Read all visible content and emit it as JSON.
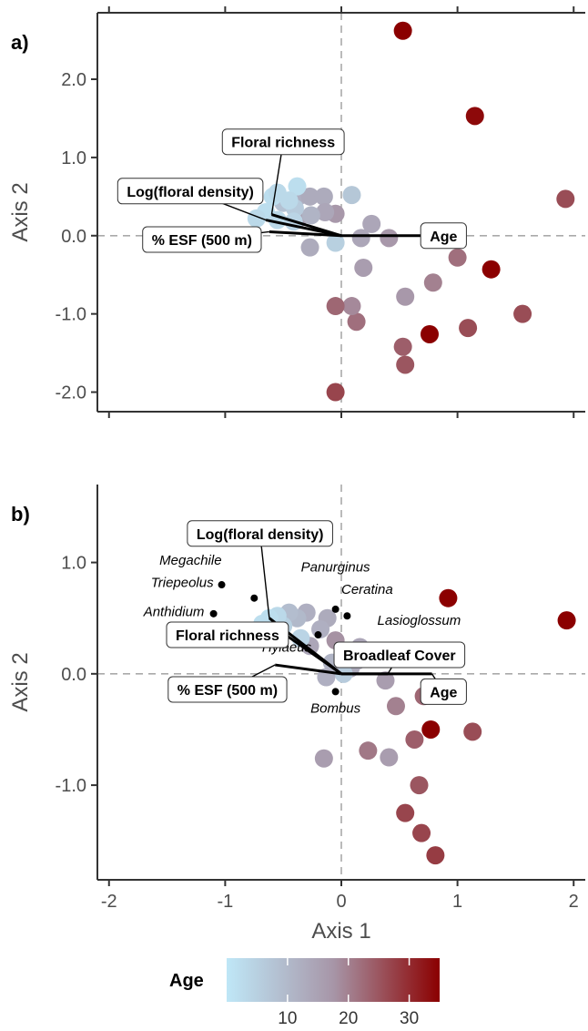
{
  "colors": {
    "low": "#bfe7f7",
    "mid": "#a796a8",
    "high": "#8b0000",
    "arrow": "#000000",
    "zero_line": "#aaaaaa"
  },
  "chart_data": [
    {
      "type": "scatter",
      "panel_label": "a)",
      "xlabel": "",
      "ylabel": "Axis 2",
      "xlim": [
        -2.1,
        2.1
      ],
      "ylim": [
        -2.25,
        2.85
      ],
      "xticks": [
        -2,
        -1,
        0,
        1,
        2
      ],
      "yticks": [
        -2.0,
        -1.0,
        0.0,
        1.0,
        2.0
      ],
      "ytick_labels": [
        "-2.0",
        "-1.0",
        "0.0",
        "1.0",
        "2.0"
      ],
      "points": [
        {
          "x": 0.53,
          "y": 2.62,
          "age": 35
        },
        {
          "x": 1.15,
          "y": 1.53,
          "age": 34
        },
        {
          "x": 1.93,
          "y": 0.47,
          "age": 26
        },
        {
          "x": 1.29,
          "y": -0.43,
          "age": 35
        },
        {
          "x": 1.0,
          "y": -0.28,
          "age": 22
        },
        {
          "x": 0.79,
          "y": -0.6,
          "age": 20
        },
        {
          "x": 0.76,
          "y": -1.26,
          "age": 35
        },
        {
          "x": 1.09,
          "y": -1.18,
          "age": 26
        },
        {
          "x": 1.56,
          "y": -1.0,
          "age": 26
        },
        {
          "x": 0.53,
          "y": -1.42,
          "age": 24
        },
        {
          "x": 0.55,
          "y": -1.65,
          "age": 25
        },
        {
          "x": 0.55,
          "y": -0.78,
          "age": 17
        },
        {
          "x": 0.41,
          "y": -0.03,
          "age": 17
        },
        {
          "x": 0.19,
          "y": -0.41,
          "age": 16
        },
        {
          "x": 0.13,
          "y": -1.1,
          "age": 22
        },
        {
          "x": 0.09,
          "y": -0.9,
          "age": 19
        },
        {
          "x": -0.05,
          "y": -0.9,
          "age": 23
        },
        {
          "x": -0.05,
          "y": -2.0,
          "age": 27
        },
        {
          "x": 0.26,
          "y": 0.15,
          "age": 14
        },
        {
          "x": 0.09,
          "y": 0.52,
          "age": 7
        },
        {
          "x": -0.05,
          "y": 0.28,
          "age": 17
        },
        {
          "x": -0.05,
          "y": -0.09,
          "age": 5
        },
        {
          "x": 0.17,
          "y": -0.03,
          "age": 14
        },
        {
          "x": -0.37,
          "y": 0.5,
          "age": 12
        },
        {
          "x": -0.27,
          "y": 0.5,
          "age": 13
        },
        {
          "x": -0.15,
          "y": 0.5,
          "age": 13
        },
        {
          "x": -0.14,
          "y": 0.3,
          "age": 14
        },
        {
          "x": -0.37,
          "y": 0.22,
          "age": 15
        },
        {
          "x": -0.26,
          "y": 0.26,
          "age": 11
        },
        {
          "x": -0.5,
          "y": 0.42,
          "age": 8
        },
        {
          "x": -0.4,
          "y": 0.35,
          "age": 6
        },
        {
          "x": -0.59,
          "y": 0.5,
          "age": 2
        },
        {
          "x": -0.38,
          "y": 0.63,
          "age": 2
        },
        {
          "x": -0.65,
          "y": 0.3,
          "age": 2
        },
        {
          "x": -0.55,
          "y": 0.2,
          "age": 3
        },
        {
          "x": -0.45,
          "y": 0.45,
          "age": 3
        },
        {
          "x": -0.73,
          "y": 0.22,
          "age": 3
        },
        {
          "x": -0.41,
          "y": 0.18,
          "age": 4
        },
        {
          "x": -0.27,
          "y": -0.15,
          "age": 13
        },
        {
          "x": -0.55,
          "y": 0.55,
          "age": 3
        }
      ],
      "vectors": [
        {
          "label": "Age",
          "x": 0.78,
          "y": 0.0,
          "bx": 0.88,
          "by": 0.0
        },
        {
          "label": "Floral richness",
          "x": -0.6,
          "y": 0.27,
          "bx": -0.5,
          "by": 1.2
        },
        {
          "label": "Log(floral density)",
          "x": -0.65,
          "y": 0.2,
          "bx": -1.3,
          "by": 0.57
        },
        {
          "label": "% ESF (500 m)",
          "x": -0.62,
          "y": 0.05,
          "bx": -1.2,
          "by": -0.05
        }
      ],
      "species": []
    },
    {
      "type": "scatter",
      "panel_label": "b)",
      "xlabel": "Axis 1",
      "ylabel": "Axis 2",
      "xlim": [
        -2.1,
        2.1
      ],
      "ylim": [
        -1.85,
        1.7
      ],
      "xticks": [
        -2,
        -1,
        0,
        1,
        2
      ],
      "xtick_labels": [
        "-2",
        "-1",
        "0",
        "1",
        "2"
      ],
      "yticks": [
        -1.0,
        0.0,
        1.0
      ],
      "ytick_labels": [
        "-1.0",
        "0.0",
        "1.0"
      ],
      "points": [
        {
          "x": 0.92,
          "y": 0.68,
          "age": 35
        },
        {
          "x": 1.94,
          "y": 0.48,
          "age": 35
        },
        {
          "x": 0.77,
          "y": -0.5,
          "age": 35
        },
        {
          "x": 1.13,
          "y": -0.52,
          "age": 26
        },
        {
          "x": 0.71,
          "y": -0.2,
          "age": 23
        },
        {
          "x": 0.63,
          "y": -0.59,
          "age": 24
        },
        {
          "x": 0.67,
          "y": -1.0,
          "age": 25
        },
        {
          "x": 0.55,
          "y": -1.25,
          "age": 27
        },
        {
          "x": 0.69,
          "y": -1.43,
          "age": 27
        },
        {
          "x": 0.81,
          "y": -1.63,
          "age": 28
        },
        {
          "x": 0.47,
          "y": -0.29,
          "age": 20
        },
        {
          "x": 0.41,
          "y": -0.75,
          "age": 16
        },
        {
          "x": 0.23,
          "y": -0.69,
          "age": 21
        },
        {
          "x": -0.15,
          "y": -0.76,
          "age": 16
        },
        {
          "x": 0.38,
          "y": -0.06,
          "age": 16
        },
        {
          "x": 0.31,
          "y": 0.2,
          "age": 17
        },
        {
          "x": 0.16,
          "y": 0.24,
          "age": 14
        },
        {
          "x": 0.14,
          "y": 0.12,
          "age": 14
        },
        {
          "x": 0.08,
          "y": 0.05,
          "age": 13
        },
        {
          "x": 0.02,
          "y": 0.0,
          "age": 6
        },
        {
          "x": -0.05,
          "y": 0.3,
          "age": 18
        },
        {
          "x": -0.12,
          "y": 0.5,
          "age": 13
        },
        {
          "x": -0.27,
          "y": 0.25,
          "age": 14
        },
        {
          "x": -0.3,
          "y": 0.55,
          "age": 12
        },
        {
          "x": -0.38,
          "y": 0.5,
          "age": 10
        },
        {
          "x": -0.45,
          "y": 0.55,
          "age": 9
        },
        {
          "x": -0.5,
          "y": 0.43,
          "age": 5
        },
        {
          "x": -0.55,
          "y": 0.52,
          "age": 3
        },
        {
          "x": -0.62,
          "y": 0.5,
          "age": 2
        },
        {
          "x": -0.68,
          "y": 0.45,
          "age": 2
        },
        {
          "x": -0.6,
          "y": 0.33,
          "age": 3
        },
        {
          "x": -0.35,
          "y": 0.32,
          "age": 4
        },
        {
          "x": -0.18,
          "y": 0.4,
          "age": 12
        },
        {
          "x": -0.08,
          "y": 0.1,
          "age": 11
        },
        {
          "x": -0.13,
          "y": -0.03,
          "age": 12
        },
        {
          "x": -0.73,
          "y": 0.38,
          "age": 3
        }
      ],
      "vectors": [
        {
          "label": "Age",
          "x": 0.78,
          "y": 0.0,
          "bx": 0.88,
          "by": -0.16
        },
        {
          "label": "Broadleaf Cover",
          "x": 0.4,
          "y": 0.0,
          "bx": 0.5,
          "by": 0.17
        },
        {
          "label": "Log(floral density)",
          "x": -0.62,
          "y": 0.5,
          "bx": -0.7,
          "by": 1.26
        },
        {
          "label": "Floral richness",
          "x": -0.48,
          "y": 0.35,
          "bx": -0.98,
          "by": 0.35
        },
        {
          "label": "% ESF (500 m)",
          "x": -0.57,
          "y": 0.08,
          "bx": -0.98,
          "by": -0.14
        }
      ],
      "species": [
        {
          "name": "Megachile",
          "x": -0.75,
          "y": 0.68,
          "lx": -1.03,
          "ly": 0.98,
          "anchor": "end"
        },
        {
          "name": "Triepeolus",
          "x": -1.03,
          "y": 0.8,
          "lx": -1.1,
          "ly": 0.78,
          "anchor": "end"
        },
        {
          "name": "Anthidium",
          "x": -1.1,
          "y": 0.54,
          "lx": -1.18,
          "ly": 0.52,
          "anchor": "end"
        },
        {
          "name": "Panurginus",
          "x": -0.05,
          "y": 0.58,
          "lx": -0.05,
          "ly": 0.92,
          "anchor": "middle"
        },
        {
          "name": "Ceratina",
          "x": 0.05,
          "y": 0.52,
          "lx": 0.0,
          "ly": 0.72,
          "anchor": "start"
        },
        {
          "name": "Lasioglossum",
          "x": -0.2,
          "y": 0.35,
          "lx": 0.31,
          "ly": 0.44,
          "anchor": "start"
        },
        {
          "name": "Hylaeus",
          "x": -0.52,
          "y": 0.35,
          "lx": -0.47,
          "ly": 0.2,
          "anchor": "middle"
        },
        {
          "name": "Bombus",
          "x": -0.05,
          "y": -0.16,
          "lx": -0.05,
          "ly": -0.35,
          "anchor": "middle"
        }
      ]
    }
  ],
  "legend": {
    "title": "Age",
    "min": 0,
    "max": 35,
    "ticks": [
      10,
      20,
      30
    ]
  }
}
